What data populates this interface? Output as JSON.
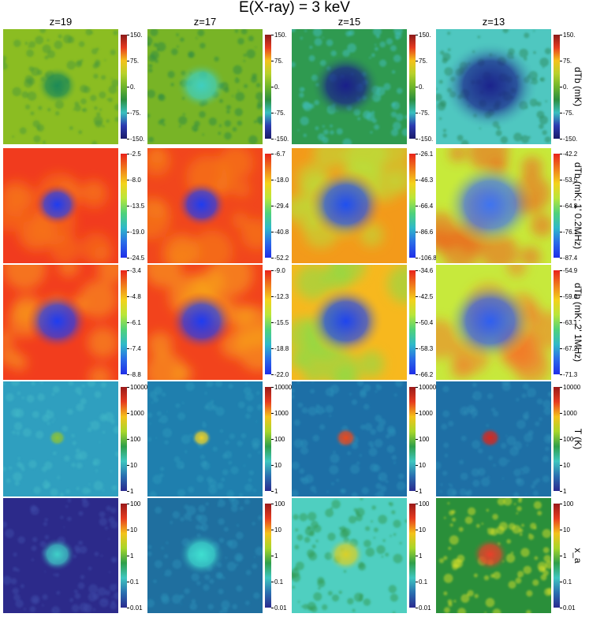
{
  "title": "E(X-ray) = 3 keV",
  "columns": [
    "z=19",
    "z=17",
    "z=15",
    "z=13"
  ],
  "rows": [
    {
      "label": "dTb (mK)",
      "colormap": "jet-green",
      "panel_styles": [
        {
          "bg": "#8bbd22",
          "center": "#1c8a57",
          "spot": 0.18,
          "noise": "#4a9a3a"
        },
        {
          "bg": "#78b426",
          "center": "#3fcfc0",
          "spot": 0.22,
          "noise": "#2e8c43"
        },
        {
          "bg": "#2f9a50",
          "center": "#1a1f8a",
          "spot": 0.3,
          "noise": "#3fbfbf"
        },
        {
          "bg": "#4fc7c0",
          "center": "#1b238c",
          "spot": 0.42,
          "noise": "#2a8a5a"
        }
      ],
      "ticks": [
        [
          "150.",
          "75.",
          "0.",
          "-75.",
          "-150."
        ],
        [
          "150.",
          "75.",
          "0.",
          "-75.",
          "-150."
        ],
        [
          "150.",
          "75.",
          "0.",
          "-75.",
          "-150."
        ],
        [
          "150.",
          "75.",
          "0.",
          "-75.",
          "-150."
        ]
      ]
    },
    {
      "label": "dTb (mK; 1' 0.2MHz)",
      "colormap": "rainbow",
      "panel_styles": [
        {
          "bg": "#f13b1e",
          "center": "#1f3cf0",
          "spot": 0.2,
          "noise": "#f6761a"
        },
        {
          "bg": "#f1461c",
          "center": "#1f3cf0",
          "spot": 0.22,
          "noise": "#f6851a"
        },
        {
          "bg": "#f39a1a",
          "center": "#1f50f0",
          "spot": 0.33,
          "noise": "#b7e23a"
        },
        {
          "bg": "#c7ea3a",
          "center": "#3f74f0",
          "spot": 0.4,
          "noise": "#f05a1c"
        }
      ],
      "ticks": [
        [
          "-2.5",
          "-8.0",
          "-13.5",
          "-19.0",
          "-24.5"
        ],
        [
          "-6.7",
          "-18.0",
          "-29.4",
          "-40.8",
          "-52.2"
        ],
        [
          "-26.1",
          "-46.3",
          "-66.4",
          "-86.6",
          "-106.8"
        ],
        [
          "-42.2",
          "-53.5",
          "-64.8",
          "-76.1",
          "-87.4"
        ]
      ]
    },
    {
      "label": "dTb (mK; 2' 1MHz)",
      "colormap": "rainbow",
      "panel_styles": [
        {
          "bg": "#f23d1d",
          "center": "#1f3cf0",
          "spot": 0.27,
          "noise": "#f7a01c"
        },
        {
          "bg": "#f2431c",
          "center": "#1f3cf0",
          "spot": 0.28,
          "noise": "#f7a91c"
        },
        {
          "bg": "#f7b81e",
          "center": "#1f45ee",
          "spot": 0.33,
          "noise": "#7fe04a"
        },
        {
          "bg": "#c7e93c",
          "center": "#2f5ff0",
          "spot": 0.38,
          "noise": "#f2782a"
        }
      ],
      "ticks": [
        [
          "-3.4",
          "-4.8",
          "-6.1",
          "-7.4",
          "-8.8"
        ],
        [
          "-9.0",
          "-12.3",
          "-15.5",
          "-18.8",
          "-22.0"
        ],
        [
          "-34.6",
          "-42.5",
          "-50.4",
          "-58.3",
          "-66.2"
        ],
        [
          "-54.9",
          "-59.0",
          "-63.1",
          "-67.2",
          "-71.3"
        ]
      ]
    },
    {
      "label": "T (K)",
      "colormap": "jet-log",
      "panel_styles": [
        {
          "bg": "#2f9fbf",
          "center": "#8ac23a",
          "spot": 0.08,
          "noise": "#3fb7c7"
        },
        {
          "bg": "#1f7fae",
          "center": "#e9d02a",
          "spot": 0.09,
          "noise": "#2d98bb"
        },
        {
          "bg": "#1d6fa6",
          "center": "#e84a1f",
          "spot": 0.1,
          "noise": "#2a8fba"
        },
        {
          "bg": "#1e6fa5",
          "center": "#d6281f",
          "spot": 0.1,
          "noise": "#2d8db7"
        }
      ],
      "ticks": [
        [
          "10000",
          "1000",
          "100",
          "10",
          "1"
        ],
        [
          "10000",
          "1000",
          "100",
          "10",
          "1"
        ],
        [
          "10000",
          "1000",
          "100",
          "10",
          "1"
        ],
        [
          "10000",
          "1000",
          "100",
          "10",
          "1"
        ]
      ]
    },
    {
      "label": "x_a",
      "colormap": "jet-log",
      "panel_styles": [
        {
          "bg": "#2c2a8a",
          "center": "#3fcfc8",
          "spot": 0.16,
          "noise": "#3c4aa8"
        },
        {
          "bg": "#1f6f9f",
          "center": "#3fdfd0",
          "spot": 0.2,
          "noise": "#2a8fb8"
        },
        {
          "bg": "#4fcfc0",
          "center": "#d8d02a",
          "spot": 0.16,
          "noise": "#2f9a50"
        },
        {
          "bg": "#2a8f3a",
          "center": "#e8402a",
          "spot": 0.16,
          "noise": "#d8e22a"
        }
      ],
      "ticks": [
        [
          "100",
          "10",
          "1",
          "0.1",
          "0.01"
        ],
        [
          "100",
          "10",
          "1",
          "0.1",
          "0.01"
        ],
        [
          "100",
          "10",
          "1",
          "0.1",
          "0.01"
        ],
        [
          "100",
          "10",
          "1",
          "0.1",
          "0.01"
        ]
      ]
    }
  ],
  "colormaps": {
    "jet-green": [
      "#8b1a1a",
      "#e63b1f",
      "#f4c21b",
      "#b7d12b",
      "#6fb52a",
      "#2c8f3f",
      "#39c0c0",
      "#2c3bb0",
      "#1a1a6a"
    ],
    "rainbow": [
      "#e8221b",
      "#f07a1b",
      "#f4d21b",
      "#b8e63a",
      "#4fd27a",
      "#2fb9c9",
      "#2a6ae8",
      "#1f2ee8"
    ],
    "jet-log": [
      "#9a1a1a",
      "#e63b1f",
      "#f4c21b",
      "#a8d62a",
      "#2f9f4a",
      "#3fc7c0",
      "#2a6fb0",
      "#2a2a8f"
    ]
  },
  "chart_data": {
    "type": "heatmap",
    "title": "E(X-ray) = 3 keV",
    "columns": [
      "z=19",
      "z=17",
      "z=15",
      "z=13"
    ],
    "rows": [
      "dTb (mK)",
      "dTb (mK; 1' 0.2MHz)",
      "dTb (mK; 2' 1MHz)",
      "T (K)",
      "x_a"
    ],
    "colorbar_ranges": [
      [
        [
          -150,
          150
        ],
        [
          -150,
          150
        ],
        [
          -150,
          150
        ],
        [
          -150,
          150
        ]
      ],
      [
        [
          -24.5,
          -2.5
        ],
        [
          -52.2,
          -6.7
        ],
        [
          -106.8,
          -26.1
        ],
        [
          -87.4,
          -42.2
        ]
      ],
      [
        [
          -8.8,
          -3.4
        ],
        [
          -22.0,
          -9.0
        ],
        [
          -66.2,
          -34.6
        ],
        [
          -71.3,
          -54.9
        ]
      ],
      [
        [
          1,
          10000
        ],
        [
          1,
          10000
        ],
        [
          1,
          10000
        ],
        [
          1,
          10000
        ]
      ],
      [
        [
          0.01,
          100
        ],
        [
          0.01,
          100
        ],
        [
          0.01,
          100
        ],
        [
          0.01,
          100
        ]
      ]
    ],
    "log_scale_rows": [
      "T (K)",
      "x_a"
    ]
  }
}
